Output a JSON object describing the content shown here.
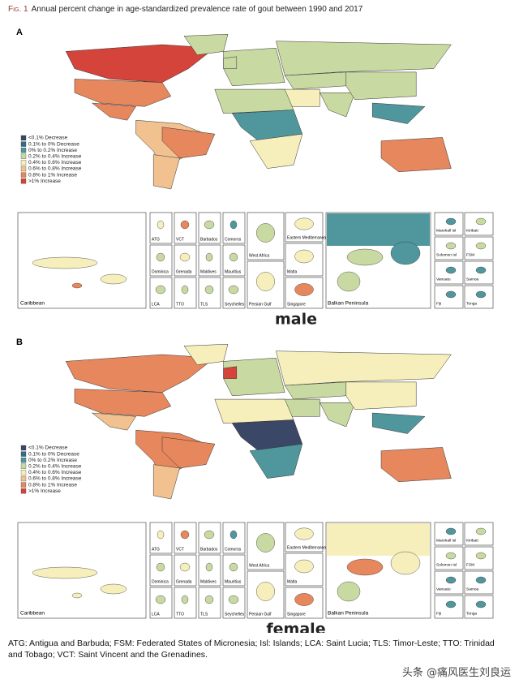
{
  "figure": {
    "title_prefix": "Fig. 1",
    "title": "Annual percent change in age-standardized prevalence rate of gout between 1990 and 2017",
    "panels": [
      {
        "label": "A",
        "legend": [
          {
            "label": "<0.1% Decrease",
            "color": "#3b4766"
          },
          {
            "label": "0.1% to 0% Decrease",
            "color": "#366b86"
          },
          {
            "label": "0% to 0.2% Increase",
            "color": "#4f979d"
          },
          {
            "label": "0.2% to 0.4% Increase",
            "color": "#c9d9a2"
          },
          {
            "label": "0.4% to 0.6% Increase",
            "color": "#f6efbb"
          },
          {
            "label": "0.6% to 0.8% Increase",
            "color": "#f1c28f"
          },
          {
            "label": "0.8% to 1% Increase",
            "color": "#e7875d"
          },
          {
            "label": ">1% Increase",
            "color": "#d4443a"
          }
        ],
        "insets": {
          "caribbean": "Caribbean",
          "small_islands": [
            "ATG",
            "VCT",
            "Barbados",
            "Comoros",
            "Dominica",
            "Grenada",
            "Maldives",
            "Mauritius",
            "LCA",
            "TTO",
            "TLS",
            "Seychelles"
          ],
          "middle_east": [
            "West Africa",
            "Eastern Mediterranean",
            "Malta",
            "Persian Gulf",
            "Singapore"
          ],
          "balkan": "Balkan Peninsula",
          "pacific": [
            "Marshall Isl",
            "Kiribati",
            "Solomon Isl",
            "FSM",
            "Vanuatu",
            "Samoa",
            "Fiji",
            "Tonga"
          ]
        },
        "caption": "male"
      },
      {
        "label": "B",
        "legend": [
          {
            "label": "<0.1% Decrease",
            "color": "#3b4766"
          },
          {
            "label": "0.1% to 0% Decrease",
            "color": "#366b86"
          },
          {
            "label": "0% to 0.2% Increase",
            "color": "#4f979d"
          },
          {
            "label": "0.2% to 0.4% Increase",
            "color": "#c9d9a2"
          },
          {
            "label": "0.4% to 0.6% Increase",
            "color": "#f6efbb"
          },
          {
            "label": "0.6% to 0.8% Increase",
            "color": "#f1c28f"
          },
          {
            "label": "0.8% to 1% Increase",
            "color": "#e7875d"
          },
          {
            "label": ">1% Increase",
            "color": "#d4443a"
          }
        ],
        "insets": {
          "caribbean": "Caribbean",
          "small_islands": [
            "ATG",
            "VCT",
            "Barbados",
            "Comoros",
            "Dominica",
            "Grenada",
            "Maldives",
            "Mauritius",
            "LCA",
            "TTO",
            "TLS",
            "Seychelles"
          ],
          "middle_east": [
            "West Africa",
            "Eastern Mediterranean",
            "Malta",
            "Persian Gulf",
            "Singapore"
          ],
          "balkan": "Balkan Peninsula",
          "pacific": [
            "Marshall Isl",
            "Kiribati",
            "Solomon Isl",
            "FSM",
            "Vanuatu",
            "Samoa",
            "Fiji",
            "Tonga"
          ]
        },
        "caption": "female"
      }
    ],
    "footnote": "ATG: Antigua and Barbuda; FSM: Federated States of Micronesia; Isl: Islands; LCA: Saint Lucia; TLS: Timor-Leste; TTO: Trinidad and Tobago; VCT: Saint Vincent and the Grenadines.",
    "watermark": "头条 @痛风医生刘良运"
  }
}
